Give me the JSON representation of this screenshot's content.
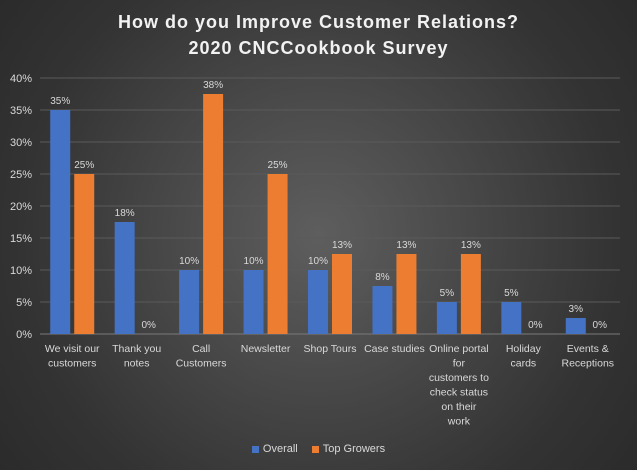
{
  "chart_data": {
    "type": "bar",
    "title": "How do you Improve Customer Relations?",
    "subtitle": "2020 CNCCookbook Survey",
    "categories": [
      [
        "We visit our",
        "customers"
      ],
      [
        "Thank you",
        "notes"
      ],
      [
        "Call",
        "Customers"
      ],
      [
        "Newsletter"
      ],
      [
        "Shop Tours"
      ],
      [
        "Case studies"
      ],
      [
        "Online portal",
        "for",
        "customers to",
        "check status",
        "on their",
        "work"
      ],
      [
        "Holiday",
        "cards"
      ],
      [
        "Events &",
        "Receptions"
      ]
    ],
    "series": [
      {
        "name": "Overall",
        "color": "#4472C4",
        "values": [
          35,
          17.5,
          10,
          10,
          10,
          7.5,
          5,
          5,
          2.5
        ],
        "labels": [
          "35%",
          "18%",
          "10%",
          "10%",
          "10%",
          "8%",
          "5%",
          "5%",
          "3%"
        ]
      },
      {
        "name": "Top Growers",
        "color": "#ED7D31",
        "values": [
          25,
          0,
          37.5,
          25,
          12.5,
          12.5,
          12.5,
          0,
          0
        ],
        "labels": [
          "25%",
          "0%",
          "38%",
          "25%",
          "13%",
          "13%",
          "13%",
          "0%",
          "0%"
        ]
      }
    ],
    "yticks": [
      "0%",
      "5%",
      "10%",
      "15%",
      "20%",
      "25%",
      "30%",
      "35%",
      "40%"
    ],
    "ylim": [
      0,
      40
    ],
    "grid": true,
    "legend_position": "bottom"
  }
}
